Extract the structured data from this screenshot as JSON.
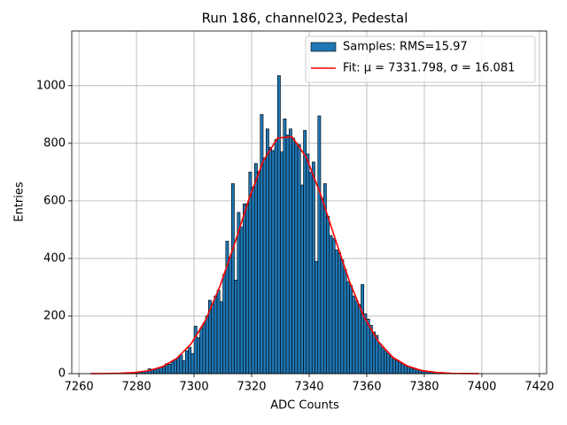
{
  "chart_data": {
    "type": "histogram",
    "title": "Run 186, channel023, Pedestal",
    "x_label": "ADC Counts",
    "y_label": "Entries",
    "xlim": [
      7257.5,
      7422.5
    ],
    "ylim": [
      0,
      1190
    ],
    "xticks": [
      7260,
      7280,
      7300,
      7320,
      7340,
      7360,
      7380,
      7400,
      7420
    ],
    "yticks": [
      0,
      200,
      400,
      600,
      800,
      1000
    ],
    "grid": true,
    "legend": "upper right",
    "bins": [
      7265,
      7266,
      7267,
      7268,
      7269,
      7270,
      7271,
      7272,
      7273,
      7274,
      7275,
      7276,
      7277,
      7278,
      7279,
      7280,
      7281,
      7282,
      7283,
      7284,
      7285,
      7286,
      7287,
      7288,
      7289,
      7290,
      7291,
      7292,
      7293,
      7294,
      7295,
      7296,
      7297,
      7298,
      7299,
      7300,
      7301,
      7302,
      7303,
      7304,
      7305,
      7306,
      7307,
      7308,
      7309,
      7310,
      7311,
      7312,
      7313,
      7314,
      7315,
      7316,
      7317,
      7318,
      7319,
      7320,
      7321,
      7322,
      7323,
      7324,
      7325,
      7326,
      7327,
      7328,
      7329,
      7330,
      7331,
      7332,
      7333,
      7334,
      7335,
      7336,
      7337,
      7338,
      7339,
      7340,
      7341,
      7342,
      7343,
      7344,
      7345,
      7346,
      7347,
      7348,
      7349,
      7350,
      7351,
      7352,
      7353,
      7354,
      7355,
      7356,
      7357,
      7358,
      7359,
      7360,
      7361,
      7362,
      7363,
      7364,
      7365,
      7366,
      7367,
      7368,
      7369,
      7370,
      7371,
      7372,
      7373,
      7374,
      7375,
      7376,
      7377,
      7378,
      7379,
      7380,
      7381,
      7382,
      7383,
      7384,
      7385,
      7386,
      7387,
      7388,
      7389,
      7390,
      7391,
      7392,
      7393,
      7394,
      7395,
      7396,
      7397,
      7398,
      7399,
      7400,
      7401,
      7402,
      7403,
      7404,
      7405,
      7406,
      7407,
      7408,
      7409,
      7410,
      7411,
      7412,
      7413,
      7414,
      7415
    ],
    "series": [
      {
        "name": "Samples: RMS=15.97",
        "color": "#1f77b4",
        "edgecolor": "#000000",
        "values": [
          0,
          0,
          0,
          0,
          1,
          0,
          1,
          1,
          2,
          1,
          2,
          2,
          3,
          3,
          4,
          5,
          6,
          7,
          9,
          17,
          13,
          16,
          19,
          22,
          25,
          35,
          33,
          42,
          50,
          56,
          65,
          45,
          80,
          92,
          70,
          165,
          125,
          158,
          175,
          200,
          255,
          241,
          270,
          290,
          250,
          345,
          460,
          404,
          660,
          325,
          560,
          510,
          590,
          590,
          700,
          648,
          730,
          702,
          900,
          749,
          850,
          786,
          775,
          813,
          1035,
          770,
          885,
          829,
          850,
          818,
          800,
          796,
          655,
          845,
          763,
          700,
          735,
          390,
          895,
          609,
          660,
          546,
          480,
          470,
          430,
          420,
          395,
          361,
          320,
          306,
          270,
          253,
          240,
          310,
          208,
          190,
          168,
          145,
          133,
          105,
          90,
          80,
          70,
          61,
          50,
          45,
          40,
          34,
          30,
          24,
          20,
          17,
          15,
          12,
          10,
          8,
          7,
          6,
          5,
          4,
          3,
          2,
          2,
          1,
          1,
          1,
          0,
          0,
          0,
          0,
          0,
          0,
          0,
          0,
          0,
          0,
          0,
          0,
          0,
          0,
          0,
          0,
          0,
          0,
          0,
          0,
          0,
          0,
          0,
          0
        ]
      },
      {
        "name": "Fit: μ = 7331.798, σ = 16.081",
        "type": "line",
        "color": "#ff0000",
        "x": [
          7264,
          7269,
          7274,
          7279,
          7284,
          7289,
          7294,
          7299,
          7304,
          7309,
          7314,
          7319,
          7324,
          7329,
          7334,
          7339,
          7344,
          7349,
          7354,
          7359,
          7364,
          7369,
          7374,
          7379,
          7384,
          7389,
          7394,
          7399
        ],
        "values": [
          0.1,
          0.4,
          1.3,
          3.8,
          10,
          24,
          53,
          104,
          186,
          304,
          449,
          604,
          738,
          818,
          823,
          751,
          622,
          469,
          320,
          198,
          112,
          57,
          27,
          11,
          4.3,
          1.5,
          0.5,
          0.1
        ]
      }
    ]
  }
}
